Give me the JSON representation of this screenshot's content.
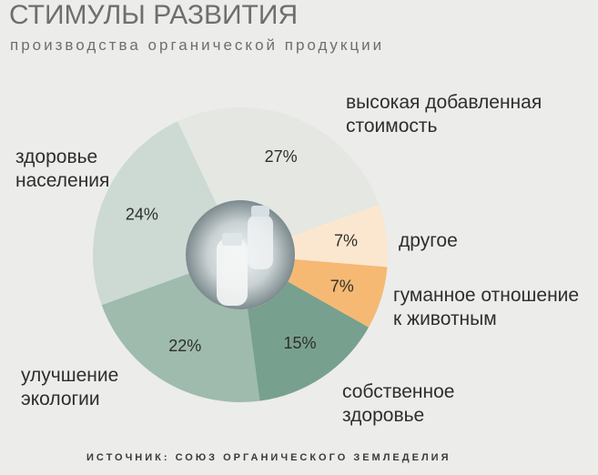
{
  "header": {
    "title": "СТИМУЛЫ РАЗВИТИЯ",
    "subtitle": "производства органической продукции"
  },
  "source": "ИСТОЧНИК: СОЮЗ ОРГАНИЧЕСКОГО ЗЕМЛЕДЕЛИЯ",
  "chart_data": {
    "type": "pie",
    "title": "СТИМУЛЫ РАЗВИТИЯ",
    "subtitle": "производства органической продукции",
    "slices": [
      {
        "label": "высокая добавленная стоимость",
        "value": 27,
        "value_label": "27%",
        "color": "#e4e7e2"
      },
      {
        "label": "другое",
        "value": 7,
        "value_label": "7%",
        "color": "#fbe7cf"
      },
      {
        "label": "гуманное отношение к животным",
        "value": 7,
        "value_label": "7%",
        "color": "#f5b973"
      },
      {
        "label": "собственное здоровье",
        "value": 15,
        "value_label": "15%",
        "color": "#78a08e"
      },
      {
        "label": "улучшение экологии",
        "value": 22,
        "value_label": "22%",
        "color": "#9ebbad"
      },
      {
        "label": "здоровье населения",
        "value": 24,
        "value_label": "24%",
        "color": "#ccdad3"
      }
    ]
  },
  "labels": {
    "high_value_line1": "высокая добавленная",
    "high_value_line2": "стоимость",
    "other": "другое",
    "humane_line1": "гуманное отношение",
    "humane_line2": "к животным",
    "own_health_line1": "собственное",
    "own_health_line2": "здоровье",
    "ecology_line1": "улучшение",
    "ecology_line2": "экологии",
    "public_health_line1": "здоровье",
    "public_health_line2": "населения"
  }
}
